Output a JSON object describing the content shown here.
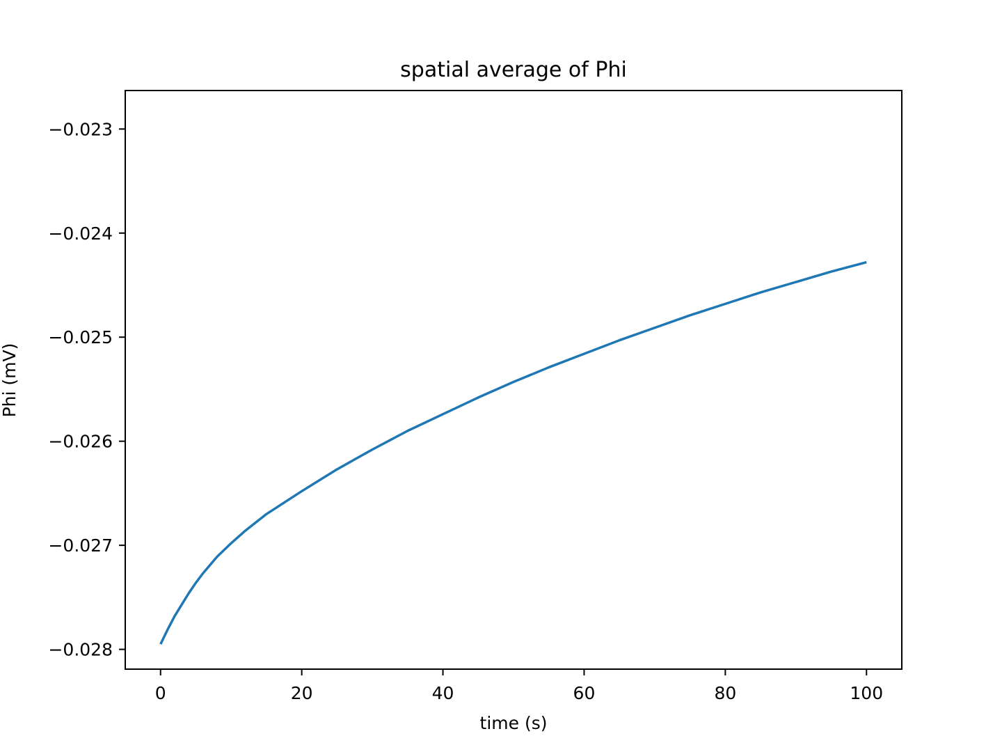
{
  "chart_data": {
    "type": "line",
    "title": "spatial average of Phi",
    "xlabel": "time (s)",
    "ylabel": "Phi (mV)",
    "xlim": [
      -5,
      105
    ],
    "ylim": [
      -0.02819,
      -0.02263
    ],
    "xticks": [
      0,
      20,
      40,
      60,
      80,
      100
    ],
    "xtick_labels": [
      "0",
      "20",
      "40",
      "60",
      "80",
      "100"
    ],
    "yticks": [
      -0.028,
      -0.027,
      -0.026,
      -0.025,
      -0.024,
      -0.023
    ],
    "ytick_labels": [
      "−0.028",
      "−0.027",
      "−0.026",
      "−0.025",
      "−0.024",
      "−0.023"
    ],
    "grid": false,
    "series": [
      {
        "color": "#1f77b4",
        "x": [
          0,
          1,
          2,
          3,
          4,
          5,
          6,
          8,
          10,
          12,
          15,
          20,
          25,
          30,
          35,
          40,
          45,
          50,
          55,
          60,
          65,
          70,
          75,
          80,
          85,
          90,
          95,
          100
        ],
        "y": [
          -0.02795,
          -0.02781,
          -0.02768,
          -0.02757,
          -0.02746,
          -0.02736,
          -0.02727,
          -0.02711,
          -0.02698,
          -0.02686,
          -0.0267,
          -0.02648,
          -0.02627,
          -0.02608,
          -0.0259,
          -0.02574,
          -0.02558,
          -0.02543,
          -0.02529,
          -0.02516,
          -0.02503,
          -0.02491,
          -0.02479,
          -0.02468,
          -0.02457,
          -0.02447,
          -0.02437,
          -0.02428
        ]
      }
    ]
  }
}
